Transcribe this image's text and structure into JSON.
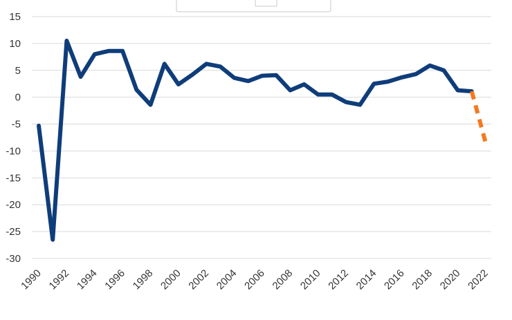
{
  "chart_data": {
    "type": "line",
    "title": "",
    "xlabel": "",
    "ylabel": "",
    "ylim": [
      -30,
      15
    ],
    "yticks": [
      15,
      10,
      5,
      0,
      -5,
      -10,
      -15,
      -20,
      -25,
      -30
    ],
    "xlim": [
      1990,
      2022
    ],
    "xticks": [
      1990,
      1992,
      1994,
      1996,
      1998,
      2000,
      2002,
      2004,
      2006,
      2008,
      2010,
      2012,
      2014,
      2016,
      2018,
      2020,
      2022
    ],
    "grid": true,
    "series": [
      {
        "style": "solid",
        "color": "#0f3d7a",
        "x": [
          1990,
          1991,
          1992,
          1993,
          1994,
          1995,
          1996,
          1997,
          1998,
          1999,
          2000,
          2001,
          2002,
          2003,
          2004,
          2005,
          2006,
          2007,
          2008,
          2009,
          2010,
          2011,
          2012,
          2013,
          2014,
          2015,
          2016,
          2017,
          2018,
          2019,
          2020,
          2021
        ],
        "y": [
          -5.3,
          -26.5,
          10.5,
          3.8,
          8.0,
          8.6,
          8.6,
          1.4,
          -1.4,
          6.2,
          2.4,
          4.2,
          6.2,
          5.7,
          3.6,
          3.0,
          4.0,
          4.1,
          1.3,
          2.4,
          0.5,
          0.5,
          -0.9,
          -1.4,
          2.5,
          2.9,
          3.7,
          4.3,
          5.9,
          5.0,
          1.3,
          1.1
        ]
      },
      {
        "style": "dashed",
        "color": "#f47a20",
        "x": [
          2021,
          2022
        ],
        "y": [
          1.1,
          -8.5
        ]
      }
    ]
  }
}
